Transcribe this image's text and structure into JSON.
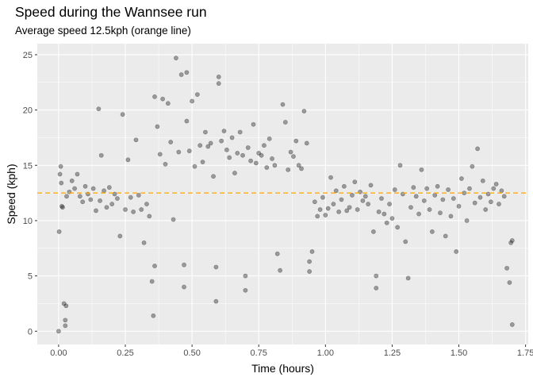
{
  "chart_data": {
    "type": "scatter",
    "title": "Speed during the Wannsee run",
    "subtitle": "Average speed 12.5kph (orange line)",
    "xlabel": "Time (hours)",
    "ylabel": "Speed (kph)",
    "xlim": [
      -0.08,
      1.76
    ],
    "ylim": [
      -1.2,
      26.0
    ],
    "x_ticks": [
      0,
      0.25,
      0.5,
      0.75,
      1,
      1.25,
      1.5,
      1.75
    ],
    "x_tick_labels": [
      "0.00",
      "0.25",
      "0.50",
      "0.75",
      "1.00",
      "1.25",
      "1.50",
      "1.75"
    ],
    "y_ticks": [
      0,
      5,
      10,
      15,
      20,
      25
    ],
    "y_tick_labels": [
      "0",
      "5",
      "10",
      "15",
      "20",
      "25"
    ],
    "grid": true,
    "reference_line": {
      "y": 12.5,
      "color": "#ffa500",
      "style": "dashed"
    },
    "point_color": "#000000",
    "point_alpha": 0.35,
    "series": [
      {
        "points": [
          [
            0.0,
            0.0
          ],
          [
            0.002,
            9.0
          ],
          [
            0.005,
            14.2
          ],
          [
            0.008,
            14.9
          ],
          [
            0.01,
            13.4
          ],
          [
            0.012,
            11.3
          ],
          [
            0.015,
            11.2
          ],
          [
            0.02,
            2.5
          ],
          [
            0.025,
            1.0
          ],
          [
            0.028,
            2.3
          ],
          [
            0.025,
            0.5
          ],
          [
            0.03,
            12.2
          ],
          [
            0.04,
            12.6
          ],
          [
            0.05,
            13.6
          ],
          [
            0.06,
            12.9
          ],
          [
            0.07,
            14.2
          ],
          [
            0.08,
            12.2
          ],
          [
            0.09,
            11.7
          ],
          [
            0.1,
            13.1
          ],
          [
            0.11,
            12.4
          ],
          [
            0.12,
            11.9
          ],
          [
            0.13,
            12.9
          ],
          [
            0.14,
            10.9
          ],
          [
            0.15,
            20.1
          ],
          [
            0.155,
            11.8
          ],
          [
            0.16,
            15.9
          ],
          [
            0.17,
            12.7
          ],
          [
            0.18,
            11.2
          ],
          [
            0.19,
            13.0
          ],
          [
            0.2,
            11.5
          ],
          [
            0.21,
            12.4
          ],
          [
            0.22,
            12.0
          ],
          [
            0.23,
            8.6
          ],
          [
            0.24,
            19.6
          ],
          [
            0.25,
            11.0
          ],
          [
            0.26,
            15.5
          ],
          [
            0.27,
            12.1
          ],
          [
            0.28,
            10.8
          ],
          [
            0.29,
            17.3
          ],
          [
            0.3,
            12.3
          ],
          [
            0.31,
            11.0
          ],
          [
            0.32,
            8.0
          ],
          [
            0.33,
            11.5
          ],
          [
            0.34,
            10.4
          ],
          [
            0.35,
            4.5
          ],
          [
            0.355,
            1.4
          ],
          [
            0.36,
            21.2
          ],
          [
            0.36,
            5.9
          ],
          [
            0.37,
            18.5
          ],
          [
            0.38,
            16.0
          ],
          [
            0.39,
            21.0
          ],
          [
            0.4,
            15.1
          ],
          [
            0.41,
            20.6
          ],
          [
            0.42,
            17.1
          ],
          [
            0.43,
            10.1
          ],
          [
            0.44,
            24.7
          ],
          [
            0.45,
            16.2
          ],
          [
            0.46,
            23.2
          ],
          [
            0.47,
            6.0
          ],
          [
            0.47,
            4.0
          ],
          [
            0.48,
            23.4
          ],
          [
            0.48,
            19.0
          ],
          [
            0.49,
            16.3
          ],
          [
            0.5,
            20.8
          ],
          [
            0.51,
            14.9
          ],
          [
            0.52,
            21.4
          ],
          [
            0.53,
            16.8
          ],
          [
            0.54,
            15.3
          ],
          [
            0.55,
            18.0
          ],
          [
            0.56,
            16.7
          ],
          [
            0.57,
            17.0
          ],
          [
            0.58,
            14.0
          ],
          [
            0.59,
            5.8
          ],
          [
            0.59,
            2.7
          ],
          [
            0.6,
            23.0
          ],
          [
            0.6,
            22.4
          ],
          [
            0.61,
            17.2
          ],
          [
            0.62,
            18.1
          ],
          [
            0.63,
            16.4
          ],
          [
            0.64,
            15.7
          ],
          [
            0.65,
            17.5
          ],
          [
            0.66,
            14.3
          ],
          [
            0.67,
            16.1
          ],
          [
            0.68,
            18.0
          ],
          [
            0.69,
            15.9
          ],
          [
            0.7,
            5.0
          ],
          [
            0.7,
            3.7
          ],
          [
            0.71,
            16.6
          ],
          [
            0.72,
            15.4
          ],
          [
            0.73,
            18.7
          ],
          [
            0.74,
            15.2
          ],
          [
            0.75,
            16.1
          ],
          [
            0.76,
            15.9
          ],
          [
            0.77,
            16.8
          ],
          [
            0.78,
            14.8
          ],
          [
            0.79,
            17.4
          ],
          [
            0.8,
            15.6
          ],
          [
            0.81,
            15.0
          ],
          [
            0.82,
            7.0
          ],
          [
            0.83,
            5.5
          ],
          [
            0.84,
            20.5
          ],
          [
            0.85,
            18.9
          ],
          [
            0.86,
            14.6
          ],
          [
            0.87,
            16.2
          ],
          [
            0.88,
            15.8
          ],
          [
            0.89,
            17.2
          ],
          [
            0.9,
            15.0
          ],
          [
            0.91,
            14.7
          ],
          [
            0.92,
            19.9
          ],
          [
            0.93,
            17.0
          ],
          [
            0.94,
            6.3
          ],
          [
            0.94,
            5.4
          ],
          [
            0.95,
            7.2
          ],
          [
            0.96,
            11.7
          ],
          [
            0.97,
            10.4
          ],
          [
            0.98,
            11.0
          ],
          [
            0.99,
            12.1
          ],
          [
            1.0,
            10.5
          ],
          [
            1.01,
            11.1
          ],
          [
            1.02,
            13.9
          ],
          [
            1.03,
            11.5
          ],
          [
            1.04,
            12.7
          ],
          [
            1.05,
            10.8
          ],
          [
            1.06,
            11.9
          ],
          [
            1.07,
            13.1
          ],
          [
            1.08,
            10.9
          ],
          [
            1.09,
            11.2
          ],
          [
            1.1,
            12.3
          ],
          [
            1.11,
            13.5
          ],
          [
            1.12,
            11.0
          ],
          [
            1.13,
            12.6
          ],
          [
            1.14,
            11.8
          ],
          [
            1.15,
            12.2
          ],
          [
            1.16,
            11.5
          ],
          [
            1.17,
            13.2
          ],
          [
            1.18,
            9.0
          ],
          [
            1.19,
            5.0
          ],
          [
            1.19,
            3.9
          ],
          [
            1.2,
            10.8
          ],
          [
            1.21,
            12.0
          ],
          [
            1.22,
            10.6
          ],
          [
            1.23,
            9.8
          ],
          [
            1.24,
            11.5
          ],
          [
            1.25,
            10.2
          ],
          [
            1.26,
            12.8
          ],
          [
            1.27,
            9.4
          ],
          [
            1.28,
            15.0
          ],
          [
            1.29,
            12.4
          ],
          [
            1.3,
            8.1
          ],
          [
            1.31,
            4.8
          ],
          [
            1.32,
            11.2
          ],
          [
            1.33,
            13.0
          ],
          [
            1.34,
            12.2
          ],
          [
            1.35,
            10.6
          ],
          [
            1.36,
            14.6
          ],
          [
            1.37,
            11.8
          ],
          [
            1.38,
            12.9
          ],
          [
            1.39,
            11.0
          ],
          [
            1.4,
            9.0
          ],
          [
            1.41,
            12.3
          ],
          [
            1.42,
            13.1
          ],
          [
            1.43,
            10.7
          ],
          [
            1.44,
            11.9
          ],
          [
            1.45,
            8.6
          ],
          [
            1.46,
            12.8
          ],
          [
            1.47,
            10.4
          ],
          [
            1.48,
            12.0
          ],
          [
            1.49,
            7.2
          ],
          [
            1.5,
            11.3
          ],
          [
            1.51,
            13.8
          ],
          [
            1.52,
            12.5
          ],
          [
            1.53,
            10.0
          ],
          [
            1.54,
            12.9
          ],
          [
            1.55,
            14.9
          ],
          [
            1.56,
            11.6
          ],
          [
            1.57,
            16.5
          ],
          [
            1.58,
            12.1
          ],
          [
            1.59,
            13.6
          ],
          [
            1.6,
            11.0
          ],
          [
            1.61,
            12.4
          ],
          [
            1.62,
            11.7
          ],
          [
            1.63,
            12.9
          ],
          [
            1.64,
            13.3
          ],
          [
            1.65,
            11.5
          ],
          [
            1.66,
            12.7
          ],
          [
            1.67,
            12.2
          ],
          [
            1.68,
            5.7
          ],
          [
            1.69,
            4.4
          ],
          [
            1.695,
            8.0
          ],
          [
            1.7,
            0.6
          ],
          [
            1.7,
            8.2
          ]
        ]
      }
    ]
  }
}
